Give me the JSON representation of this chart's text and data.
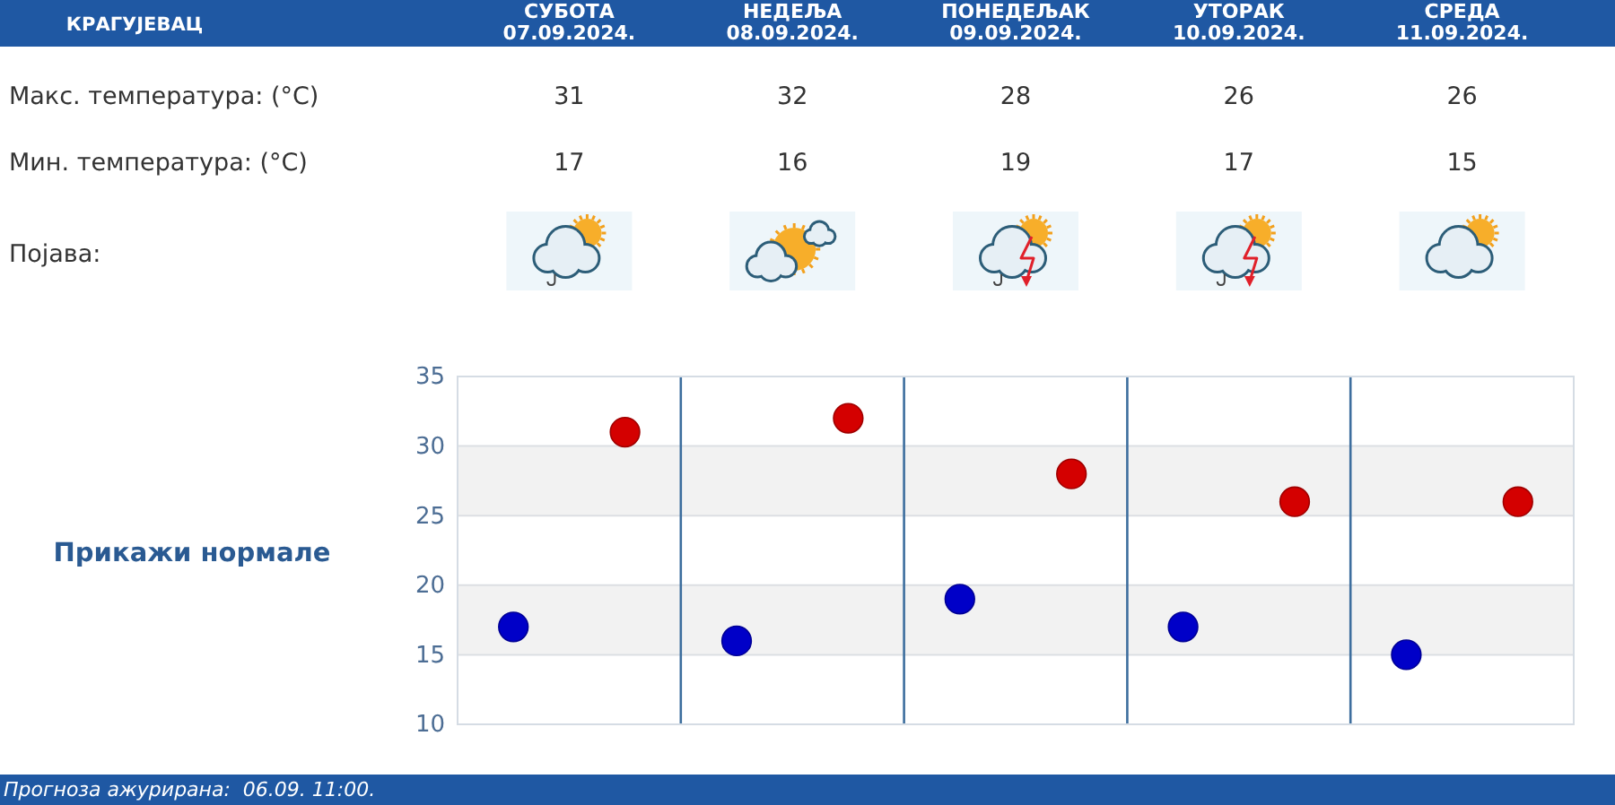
{
  "chart_data": {
    "type": "scatter",
    "title": "КРАГУЈЕВАЦ",
    "categories": [
      null,
      null,
      null,
      null,
      null
    ],
    "series": [
      {
        "color": "#d40000",
        "values": [
          31,
          32,
          28,
          26,
          26
        ]
      },
      {
        "color": "#0000c8",
        "values": [
          17,
          16,
          19,
          17,
          15
        ]
      }
    ],
    "ylim": [
      10,
      35
    ],
    "yticks": [
      10,
      15,
      20,
      25,
      30,
      35
    ],
    "grid": true,
    "marker": "circle",
    "data_labels": true,
    "bands": [
      {
        "axis": "y",
        "from": 15,
        "to": 20,
        "color": "#f2f2f2"
      },
      {
        "axis": "y",
        "from": 25,
        "to": 30,
        "color": "#f2f2f2"
      }
    ],
    "annotations": [
      "СУБОТА 07.09.2024.",
      "НЕДЕЉА 08.09.2024.",
      "ПОНЕДЕЉАК 09.09.2024.",
      "УТОРАК 10.09.2024.",
      "СРЕДА 11.09.2024.",
      "Макс. температура: (°C)",
      "Мин. температура: (°C)",
      "Појава:",
      "Прикажи нормале",
      "Прогноза ажурирана:  06.09. 11:00."
    ]
  }
}
